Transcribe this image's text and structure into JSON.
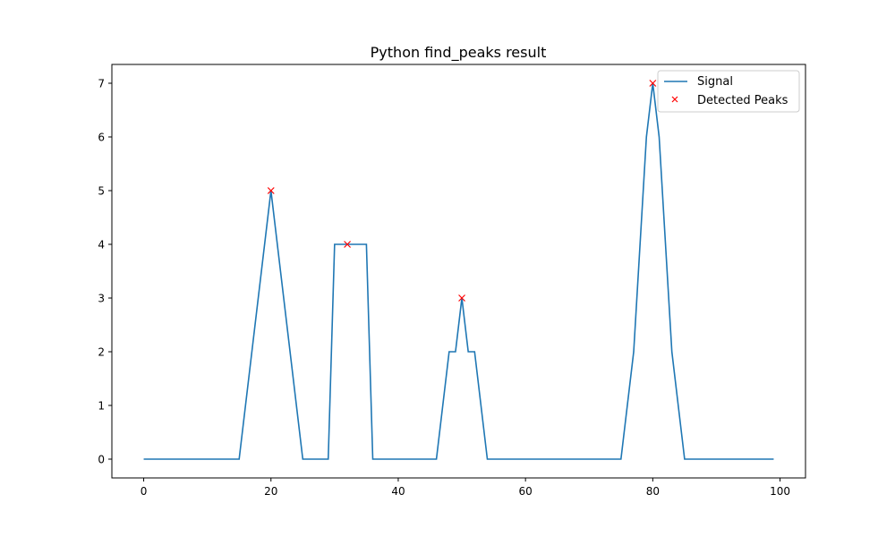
{
  "chart_data": {
    "type": "line",
    "title": "Python find_peaks result",
    "xlabel": "",
    "ylabel": "",
    "xlim": [
      -5,
      104
    ],
    "ylim": [
      -0.35,
      7.35
    ],
    "xticks": [
      0,
      20,
      40,
      60,
      80,
      100
    ],
    "yticks": [
      0,
      1,
      2,
      3,
      4,
      5,
      6,
      7
    ],
    "grid": false,
    "legend_position": "top-right",
    "series": [
      {
        "name": "Signal",
        "kind": "line",
        "color": "#1f77b4",
        "points": [
          [
            0,
            0
          ],
          [
            15,
            0
          ],
          [
            20,
            5
          ],
          [
            25,
            0
          ],
          [
            29,
            0
          ],
          [
            30,
            4
          ],
          [
            35,
            4
          ],
          [
            36,
            0
          ],
          [
            46,
            0
          ],
          [
            48,
            2
          ],
          [
            49,
            2
          ],
          [
            50,
            3
          ],
          [
            51,
            2
          ],
          [
            52,
            2
          ],
          [
            54,
            0
          ],
          [
            75,
            0
          ],
          [
            77,
            2
          ],
          [
            79,
            6
          ],
          [
            80,
            7
          ],
          [
            81,
            6
          ],
          [
            83,
            2
          ],
          [
            85,
            0
          ],
          [
            99,
            0
          ]
        ]
      },
      {
        "name": "Detected Peaks",
        "kind": "scatter",
        "marker": "x",
        "color": "#ff0000",
        "points": [
          [
            20,
            5
          ],
          [
            32,
            4
          ],
          [
            50,
            3
          ],
          [
            80,
            7
          ]
        ]
      }
    ]
  }
}
